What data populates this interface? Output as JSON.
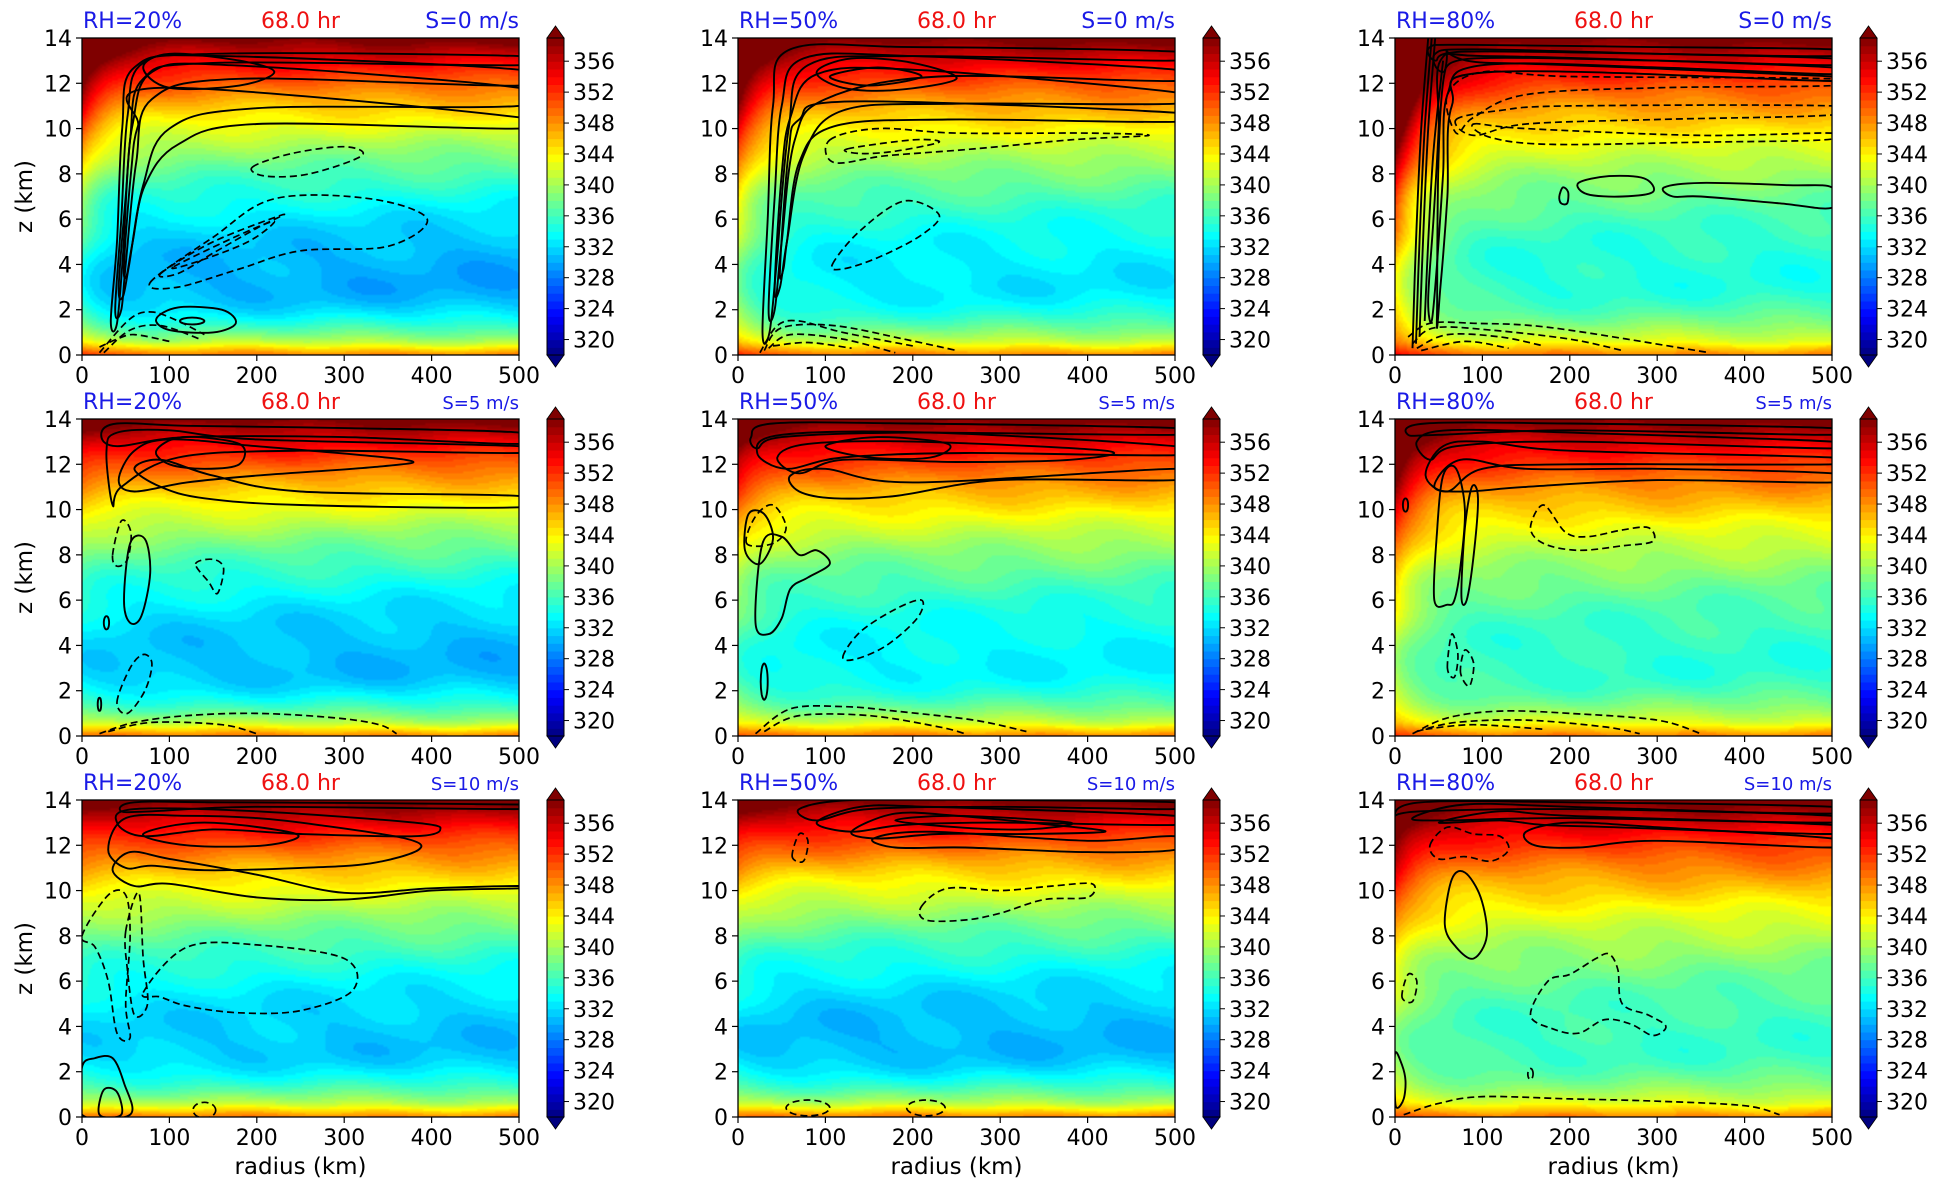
{
  "figure": {
    "colormap": "jet",
    "colormap_stops": [
      "#00007f",
      "#0000ff",
      "#007fff",
      "#00ffff",
      "#7fff7f",
      "#ffff00",
      "#ff7f00",
      "#ff0000",
      "#7f0000"
    ],
    "contour_color": "#000000",
    "title_colors": {
      "rh": "#1a1ae6",
      "time": "#ee1111",
      "shear": "#1a1ae6"
    }
  },
  "chart_data": [
    {
      "type": "heatmap",
      "row": 0,
      "col": 0,
      "title_left": "RH=20%",
      "title_center": "68.0 hr",
      "title_right": "S=0 m/s",
      "xlabel": "",
      "ylabel": "z (km)",
      "xlim": [
        0,
        500
      ],
      "ylim": [
        0,
        14
      ],
      "xticks": [
        0,
        100,
        200,
        300,
        400,
        500
      ],
      "yticks": [
        0,
        2,
        4,
        6,
        8,
        10,
        12,
        14
      ],
      "colorbar_ticks": [
        320,
        324,
        328,
        332,
        336,
        340,
        344,
        348,
        352,
        356
      ],
      "clim": [
        318,
        359
      ]
    },
    {
      "type": "heatmap",
      "row": 0,
      "col": 1,
      "title_left": "RH=50%",
      "title_center": "68.0 hr",
      "title_right": "S=0 m/s",
      "xlabel": "",
      "ylabel": "",
      "xlim": [
        0,
        500
      ],
      "ylim": [
        0,
        14
      ],
      "xticks": [
        0,
        100,
        200,
        300,
        400,
        500
      ],
      "yticks": [
        0,
        2,
        4,
        6,
        8,
        10,
        12,
        14
      ],
      "colorbar_ticks": [
        320,
        324,
        328,
        332,
        336,
        340,
        344,
        348,
        352,
        356
      ],
      "clim": [
        318,
        359
      ]
    },
    {
      "type": "heatmap",
      "row": 0,
      "col": 2,
      "title_left": "RH=80%",
      "title_center": "68.0 hr",
      "title_right": "S=0 m/s",
      "xlabel": "",
      "ylabel": "",
      "xlim": [
        0,
        500
      ],
      "ylim": [
        0,
        14
      ],
      "xticks": [
        0,
        100,
        200,
        300,
        400,
        500
      ],
      "yticks": [
        0,
        2,
        4,
        6,
        8,
        10,
        12,
        14
      ],
      "colorbar_ticks": [
        320,
        324,
        328,
        332,
        336,
        340,
        344,
        348,
        352,
        356
      ],
      "clim": [
        318,
        359
      ]
    },
    {
      "type": "heatmap",
      "row": 1,
      "col": 0,
      "title_left": "RH=20%",
      "title_center": "68.0 hr",
      "title_right": "S=5 m/s",
      "xlabel": "",
      "ylabel": "z (km)",
      "xlim": [
        0,
        500
      ],
      "ylim": [
        0,
        14
      ],
      "xticks": [
        0,
        100,
        200,
        300,
        400,
        500
      ],
      "yticks": [
        0,
        2,
        4,
        6,
        8,
        10,
        12,
        14
      ],
      "colorbar_ticks": [
        320,
        324,
        328,
        332,
        336,
        340,
        344,
        348,
        352,
        356
      ],
      "clim": [
        318,
        359
      ]
    },
    {
      "type": "heatmap",
      "row": 1,
      "col": 1,
      "title_left": "RH=50%",
      "title_center": "68.0 hr",
      "title_right": "S=5 m/s",
      "xlabel": "",
      "ylabel": "",
      "xlim": [
        0,
        500
      ],
      "ylim": [
        0,
        14
      ],
      "xticks": [
        0,
        100,
        200,
        300,
        400,
        500
      ],
      "yticks": [
        0,
        2,
        4,
        6,
        8,
        10,
        12,
        14
      ],
      "colorbar_ticks": [
        320,
        324,
        328,
        332,
        336,
        340,
        344,
        348,
        352,
        356
      ],
      "clim": [
        318,
        359
      ]
    },
    {
      "type": "heatmap",
      "row": 1,
      "col": 2,
      "title_left": "RH=80%",
      "title_center": "68.0 hr",
      "title_right": "S=5 m/s",
      "xlabel": "",
      "ylabel": "",
      "xlim": [
        0,
        500
      ],
      "ylim": [
        0,
        14
      ],
      "xticks": [
        0,
        100,
        200,
        300,
        400,
        500
      ],
      "yticks": [
        0,
        2,
        4,
        6,
        8,
        10,
        12,
        14
      ],
      "colorbar_ticks": [
        320,
        324,
        328,
        332,
        336,
        340,
        344,
        348,
        352,
        356
      ],
      "clim": [
        318,
        359
      ]
    },
    {
      "type": "heatmap",
      "row": 2,
      "col": 0,
      "title_left": "RH=20%",
      "title_center": "68.0 hr",
      "title_right": "S=10 m/s",
      "xlabel": "radius (km)",
      "ylabel": "z (km)",
      "xlim": [
        0,
        500
      ],
      "ylim": [
        0,
        14
      ],
      "xticks": [
        0,
        100,
        200,
        300,
        400,
        500
      ],
      "yticks": [
        0,
        2,
        4,
        6,
        8,
        10,
        12,
        14
      ],
      "colorbar_ticks": [
        320,
        324,
        328,
        332,
        336,
        340,
        344,
        348,
        352,
        356
      ],
      "clim": [
        318,
        359
      ]
    },
    {
      "type": "heatmap",
      "row": 2,
      "col": 1,
      "title_left": "RH=50%",
      "title_center": "68.0 hr",
      "title_right": "S=10 m/s",
      "xlabel": "radius (km)",
      "ylabel": "",
      "xlim": [
        0,
        500
      ],
      "ylim": [
        0,
        14
      ],
      "xticks": [
        0,
        100,
        200,
        300,
        400,
        500
      ],
      "yticks": [
        0,
        2,
        4,
        6,
        8,
        10,
        12,
        14
      ],
      "colorbar_ticks": [
        320,
        324,
        328,
        332,
        336,
        340,
        344,
        348,
        352,
        356
      ],
      "clim": [
        318,
        359
      ]
    },
    {
      "type": "heatmap",
      "row": 2,
      "col": 2,
      "title_left": "RH=80%",
      "title_center": "68.0 hr",
      "title_right": "S=10 m/s",
      "xlabel": "radius (km)",
      "ylabel": "",
      "xlim": [
        0,
        500
      ],
      "ylim": [
        0,
        14
      ],
      "xticks": [
        0,
        100,
        200,
        300,
        400,
        500
      ],
      "yticks": [
        0,
        2,
        4,
        6,
        8,
        10,
        12,
        14
      ],
      "colorbar_ticks": [
        320,
        324,
        328,
        332,
        336,
        340,
        344,
        348,
        352,
        356
      ],
      "clim": [
        318,
        359
      ]
    }
  ]
}
